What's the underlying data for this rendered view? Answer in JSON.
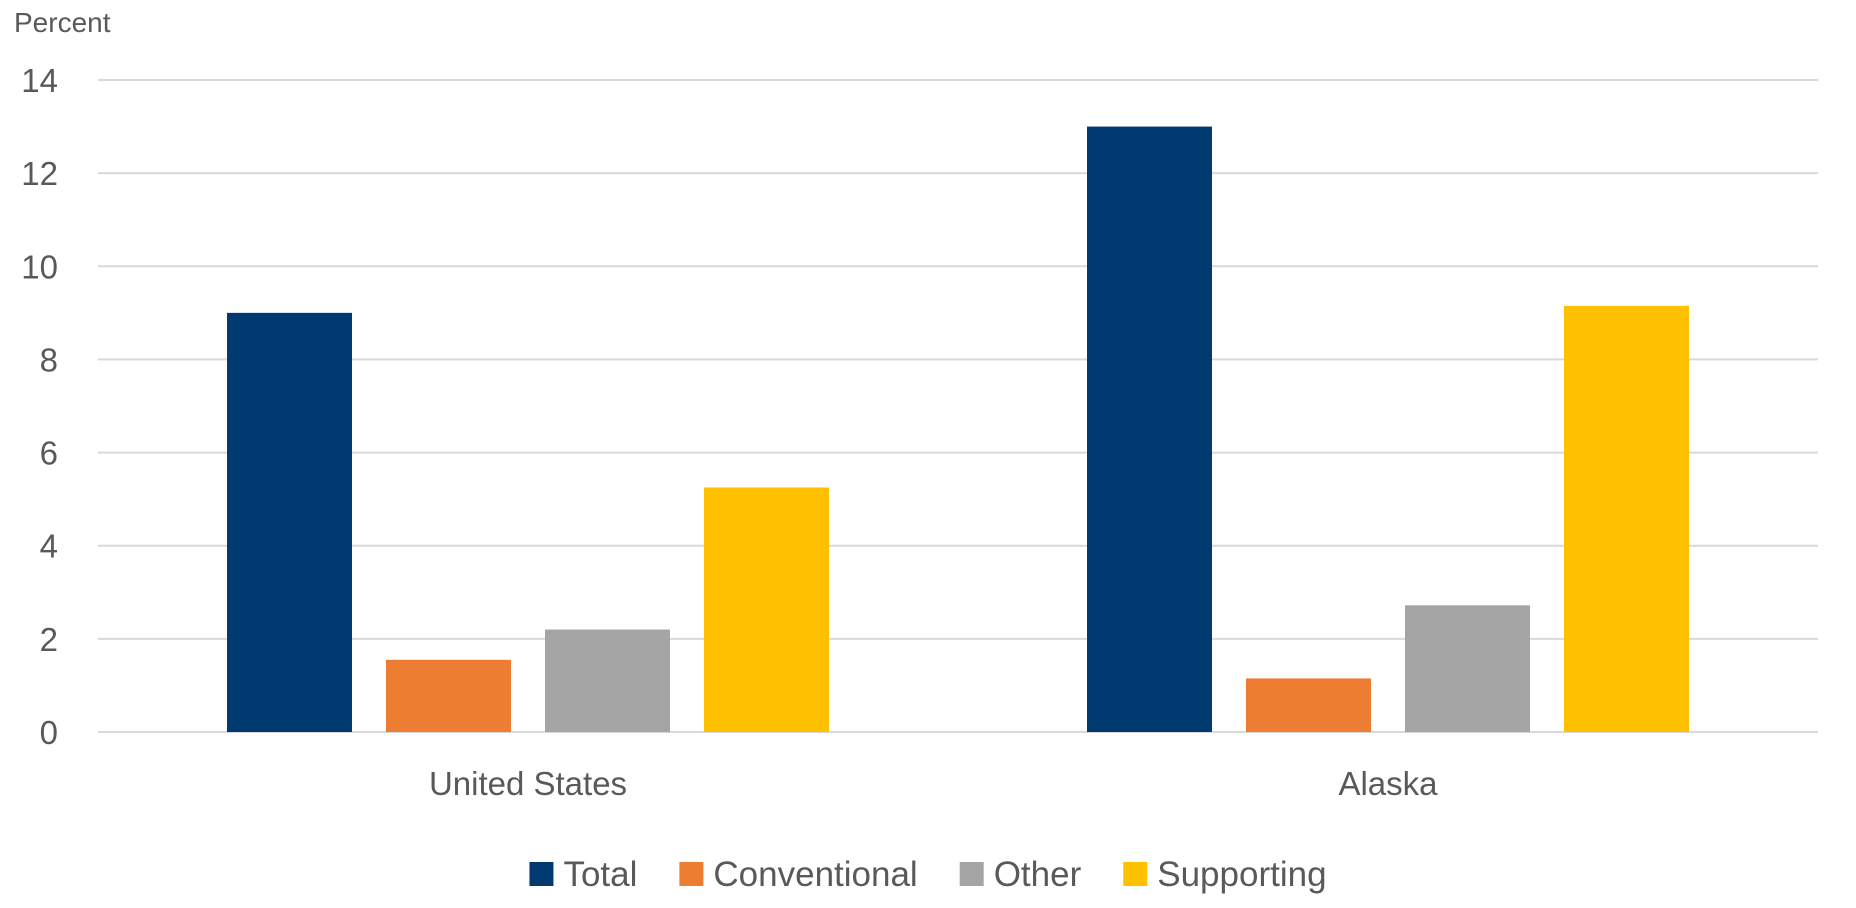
{
  "chart_data": {
    "type": "bar",
    "ylabel": "Percent",
    "xlabel": "",
    "categories": [
      "United States",
      "Alaska"
    ],
    "series": [
      {
        "name": "Total",
        "color": "#003a70",
        "values": [
          9.0,
          13.0
        ]
      },
      {
        "name": "Conventional",
        "color": "#ed7d31",
        "values": [
          1.55,
          1.15
        ]
      },
      {
        "name": "Other",
        "color": "#a5a5a5",
        "values": [
          2.2,
          2.72
        ]
      },
      {
        "name": "Supporting",
        "color": "#ffc000",
        "values": [
          5.25,
          9.15
        ]
      }
    ],
    "ylim": [
      0,
      14
    ],
    "yticks": [
      0,
      2,
      4,
      6,
      8,
      10,
      12,
      14
    ],
    "grid": true,
    "legend_position": "bottom"
  }
}
